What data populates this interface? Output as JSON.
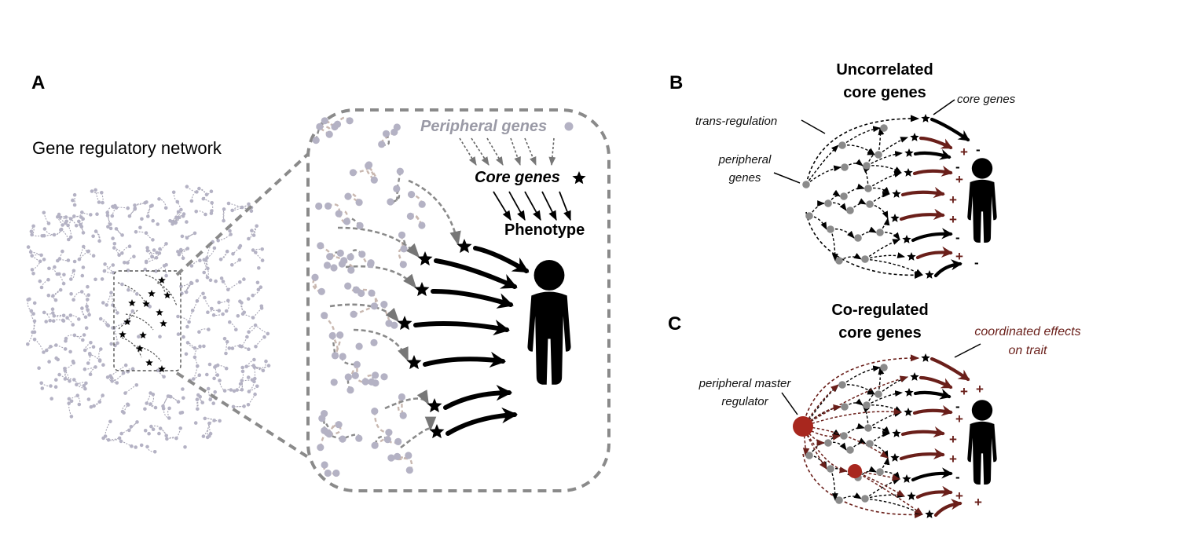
{
  "panel_a": {
    "letter": "A",
    "title": "Gene regulatory network",
    "inset": {
      "peripheral_label": "Peripheral genes",
      "core_label": "Core genes",
      "phenotype_label": "Phenotype"
    }
  },
  "panel_b": {
    "letter": "B",
    "title_line1": "Uncorrelated",
    "title_line2": "core genes",
    "label_trans": "trans-regulation",
    "label_core": "core genes",
    "label_peripheral_line1": "peripheral",
    "label_peripheral_line2": "genes",
    "signs": [
      "-",
      "+",
      "-",
      "+",
      "+",
      "+",
      "-",
      "+",
      "-",
      "+"
    ]
  },
  "panel_c": {
    "letter": "C",
    "title_line1": "Co-regulated",
    "title_line2": "core genes",
    "label_master_line1": "peripheral master",
    "label_master_line2": "regulator",
    "label_effects_line1": "coordinated effects",
    "label_effects_line2": "on trait",
    "signs": [
      "+",
      "+",
      "-",
      "+",
      "+",
      "+",
      "-",
      "+",
      "+",
      "+"
    ]
  },
  "colors": {
    "peripheral_node": "#b4b2c4",
    "network_edge": "#a7a5b5",
    "inset_edge_brown": "#c9b8b0",
    "inset_edge_gray": "#8a8a8a",
    "core_star": "#000000",
    "positive_effect": "#6a1f1a",
    "master_regulator": "#a8271e"
  }
}
